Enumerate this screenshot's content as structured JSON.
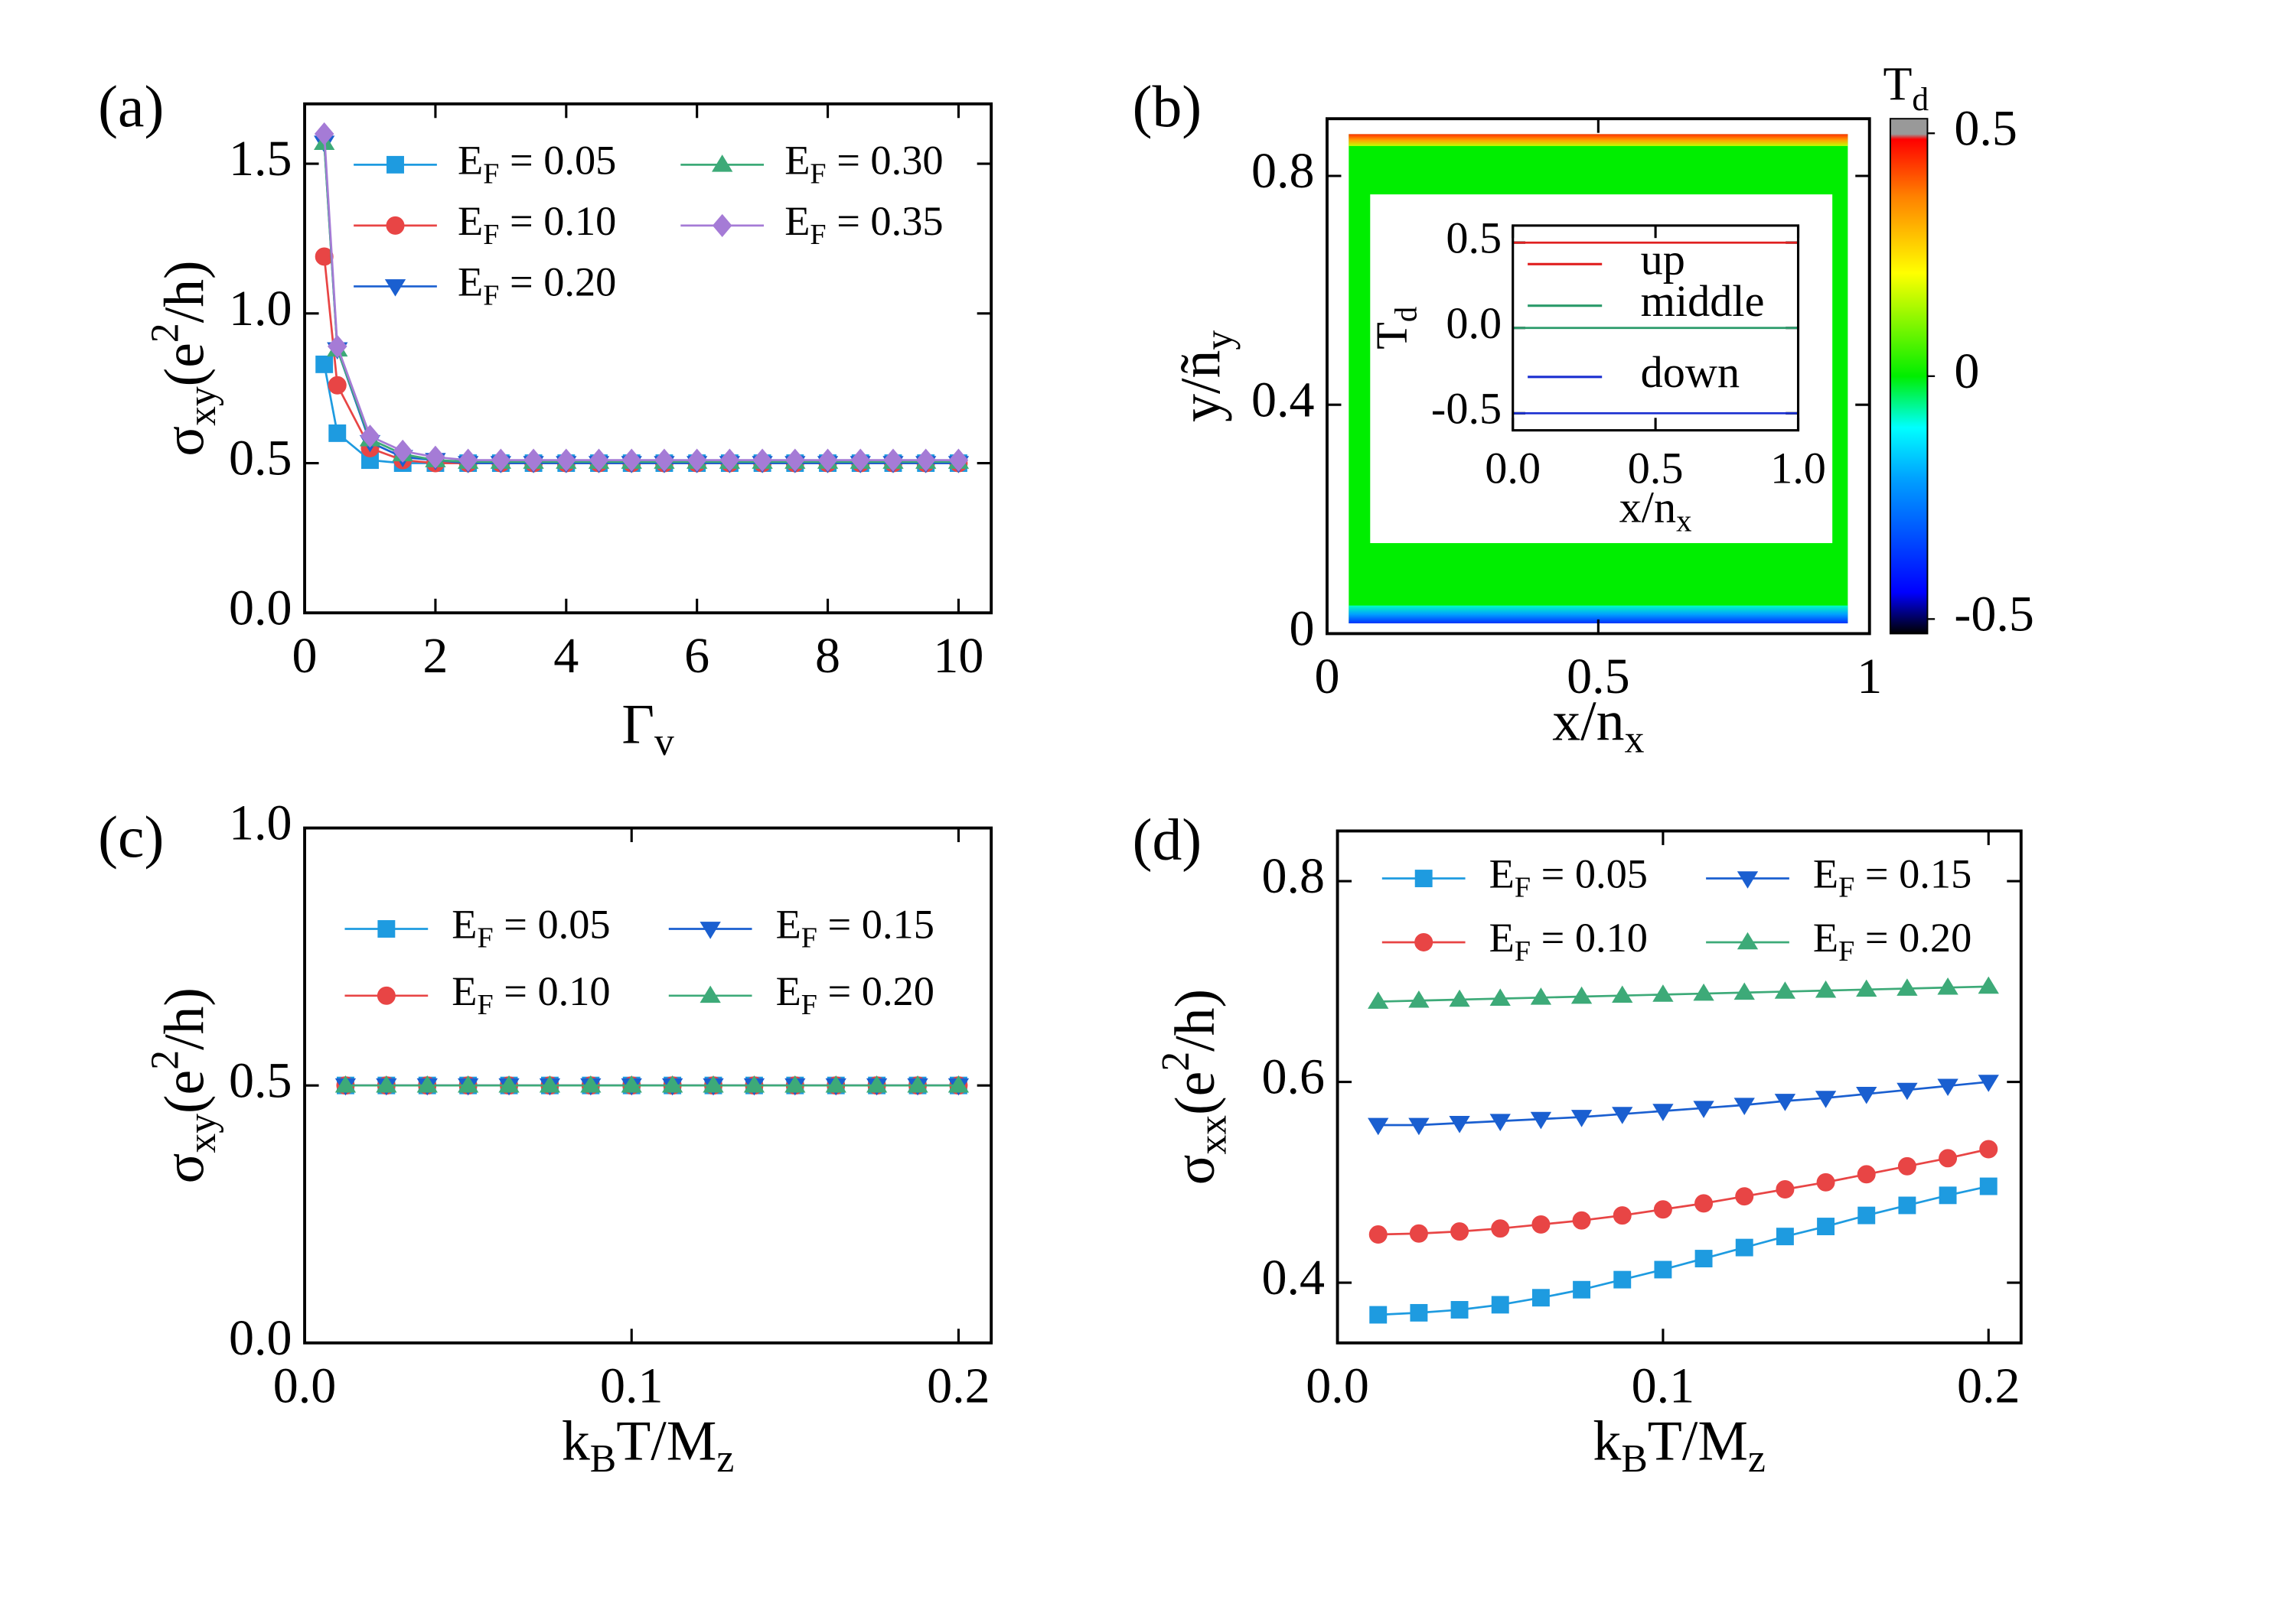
{
  "chart_data": [
    {
      "type": "line",
      "panel_label": "(a)",
      "xlabel": "Γv",
      "ylabel": "σxy(e2/h)",
      "xlim": [
        0,
        10.5
      ],
      "ylim": [
        0,
        1.7
      ],
      "xticks": [
        0,
        2,
        4,
        6,
        8,
        10
      ],
      "yticks": [
        {
          "value": 0,
          "label": "0.0"
        },
        0.5,
        {
          "value": 1,
          "label": "1.0"
        },
        1.5
      ],
      "x": [
        0.3,
        0.5,
        1,
        1.5,
        2,
        2.5,
        3,
        3.5,
        4,
        4.5,
        5,
        5.5,
        6,
        6.5,
        7,
        7.5,
        8,
        8.5,
        9,
        9.5,
        10
      ],
      "series": [
        {
          "name": "EF = 0.05",
          "color": "#1e9be0",
          "marker": "square",
          "values": [
            0.83,
            0.6,
            0.51,
            0.5,
            0.5,
            0.5,
            0.5,
            0.5,
            0.5,
            0.5,
            0.5,
            0.5,
            0.5,
            0.5,
            0.5,
            0.5,
            0.5,
            0.5,
            0.5,
            0.5,
            0.5
          ]
        },
        {
          "name": "EF = 0.10",
          "color": "#e84545",
          "marker": "circle",
          "values": [
            1.19,
            0.76,
            0.55,
            0.51,
            0.5,
            0.5,
            0.5,
            0.5,
            0.5,
            0.5,
            0.5,
            0.5,
            0.5,
            0.5,
            0.5,
            0.5,
            0.5,
            0.5,
            0.5,
            0.5,
            0.5
          ]
        },
        {
          "name": "EF = 0.20",
          "color": "#1a5fd0",
          "marker": "triangle-down",
          "values": [
            1.57,
            0.88,
            0.57,
            0.52,
            0.51,
            0.5,
            0.5,
            0.5,
            0.5,
            0.5,
            0.5,
            0.5,
            0.5,
            0.5,
            0.5,
            0.5,
            0.5,
            0.5,
            0.5,
            0.5,
            0.5
          ]
        },
        {
          "name": "EF = 0.30",
          "color": "#3daa78",
          "marker": "triangle-up",
          "values": [
            1.57,
            0.88,
            0.58,
            0.53,
            0.51,
            0.505,
            0.505,
            0.505,
            0.505,
            0.505,
            0.505,
            0.505,
            0.505,
            0.505,
            0.505,
            0.505,
            0.505,
            0.505,
            0.505,
            0.505,
            0.505
          ]
        },
        {
          "name": "EF = 0.35",
          "color": "#a57bd6",
          "marker": "diamond",
          "values": [
            1.6,
            0.89,
            0.59,
            0.54,
            0.52,
            0.51,
            0.51,
            0.51,
            0.51,
            0.51,
            0.51,
            0.51,
            0.51,
            0.51,
            0.51,
            0.51,
            0.51,
            0.51,
            0.51,
            0.51,
            0.51
          ]
        }
      ]
    },
    {
      "type": "heatmap",
      "panel_label": "(b)",
      "xlabel": "x/nx",
      "ylabel": "y/ñy",
      "xlim": [
        0,
        1
      ],
      "ylim": [
        0,
        0.9
      ],
      "xticks": [
        0,
        0.5,
        1
      ],
      "yticks": [
        0,
        0.4,
        0.8
      ],
      "colorbar": {
        "label": "Td",
        "lim": [
          -0.53,
          0.53
        ],
        "ticks": [
          0.5,
          0,
          -0.5
        ]
      },
      "inset": {
        "type": "line",
        "xlabel": "x/nx",
        "ylabel": "Td",
        "xlim": [
          0,
          1
        ],
        "ylim": [
          -0.6,
          0.6
        ],
        "xticks": [
          {
            "value": 0,
            "label": "0.0"
          },
          0.5,
          {
            "value": 1,
            "label": "1.0"
          }
        ],
        "yticks": [
          -0.5,
          {
            "value": 0,
            "label": "0.0"
          },
          0.5
        ],
        "series": [
          {
            "name": "up",
            "color": "#e02020",
            "x": [
              0,
              1
            ],
            "values": [
              0.5,
              0.5
            ]
          },
          {
            "name": "middle",
            "color": "#2a9a6a",
            "x": [
              0,
              1
            ],
            "values": [
              0,
              0
            ]
          },
          {
            "name": "down",
            "color": "#1a2fd0",
            "x": [
              0,
              1
            ],
            "values": [
              -0.5,
              -0.5
            ]
          }
        ]
      }
    },
    {
      "type": "line",
      "panel_label": "(c)",
      "xlabel": "kBT/Mz",
      "ylabel": "σxy(e2/h)",
      "xlim": [
        0,
        0.21
      ],
      "ylim": [
        0,
        1
      ],
      "xticks": [
        {
          "value": 0,
          "label": "0.0"
        },
        0.1,
        0.2
      ],
      "yticks": [
        {
          "value": 0,
          "label": "0.0"
        },
        0.5,
        {
          "value": 1,
          "label": "1.0"
        }
      ],
      "x": [
        0.0125,
        0.025,
        0.0375,
        0.05,
        0.0625,
        0.075,
        0.0875,
        0.1,
        0.1125,
        0.125,
        0.1375,
        0.15,
        0.1625,
        0.175,
        0.1875,
        0.2
      ],
      "series": [
        {
          "name": "EF = 0.05",
          "color": "#1e9be0",
          "marker": "square",
          "values": [
            0.5,
            0.5,
            0.5,
            0.5,
            0.5,
            0.5,
            0.5,
            0.5,
            0.5,
            0.5,
            0.5,
            0.5,
            0.5,
            0.5,
            0.5,
            0.5
          ]
        },
        {
          "name": "EF = 0.10",
          "color": "#e84545",
          "marker": "circle",
          "values": [
            0.5,
            0.5,
            0.5,
            0.5,
            0.5,
            0.5,
            0.5,
            0.5,
            0.5,
            0.5,
            0.5,
            0.5,
            0.5,
            0.5,
            0.5,
            0.5
          ]
        },
        {
          "name": "EF = 0.15",
          "color": "#1a5fd0",
          "marker": "triangle-down",
          "values": [
            0.5,
            0.5,
            0.5,
            0.5,
            0.5,
            0.5,
            0.5,
            0.5,
            0.5,
            0.5,
            0.5,
            0.5,
            0.5,
            0.5,
            0.5,
            0.5
          ]
        },
        {
          "name": "EF = 0.20",
          "color": "#3daa78",
          "marker": "triangle-up",
          "values": [
            0.5,
            0.5,
            0.5,
            0.5,
            0.5,
            0.5,
            0.5,
            0.5,
            0.5,
            0.5,
            0.5,
            0.5,
            0.5,
            0.5,
            0.5,
            0.5
          ]
        }
      ]
    },
    {
      "type": "line",
      "panel_label": "(d)",
      "xlabel": "kBT/Mz",
      "ylabel": "σxx(e2/h)",
      "xlim": [
        0,
        0.21
      ],
      "ylim": [
        0.34,
        0.85
      ],
      "xticks": [
        {
          "value": 0,
          "label": "0.0"
        },
        0.1,
        0.2
      ],
      "yticks": [
        0.4,
        0.6,
        0.8
      ],
      "x": [
        0.0125,
        0.025,
        0.0375,
        0.05,
        0.0625,
        0.075,
        0.0875,
        0.1,
        0.1125,
        0.125,
        0.1375,
        0.15,
        0.1625,
        0.175,
        0.1875,
        0.2
      ],
      "series": [
        {
          "name": "EF = 0.05",
          "color": "#1e9be0",
          "marker": "square",
          "values": [
            0.368,
            0.37,
            0.373,
            0.378,
            0.385,
            0.393,
            0.403,
            0.413,
            0.424,
            0.435,
            0.446,
            0.456,
            0.467,
            0.477,
            0.487,
            0.496
          ]
        },
        {
          "name": "EF = 0.10",
          "color": "#e84545",
          "marker": "circle",
          "values": [
            0.448,
            0.449,
            0.451,
            0.454,
            0.458,
            0.462,
            0.467,
            0.473,
            0.479,
            0.486,
            0.493,
            0.5,
            0.508,
            0.516,
            0.524,
            0.533
          ]
        },
        {
          "name": "EF = 0.15",
          "color": "#1a5fd0",
          "marker": "triangle-down",
          "values": [
            0.557,
            0.557,
            0.559,
            0.561,
            0.563,
            0.565,
            0.568,
            0.571,
            0.574,
            0.577,
            0.581,
            0.584,
            0.588,
            0.592,
            0.596,
            0.6
          ]
        },
        {
          "name": "EF = 0.20",
          "color": "#3daa78",
          "marker": "triangle-up",
          "values": [
            0.68,
            0.681,
            0.682,
            0.683,
            0.684,
            0.685,
            0.686,
            0.687,
            0.688,
            0.689,
            0.69,
            0.691,
            0.692,
            0.693,
            0.694,
            0.695
          ]
        }
      ]
    }
  ]
}
